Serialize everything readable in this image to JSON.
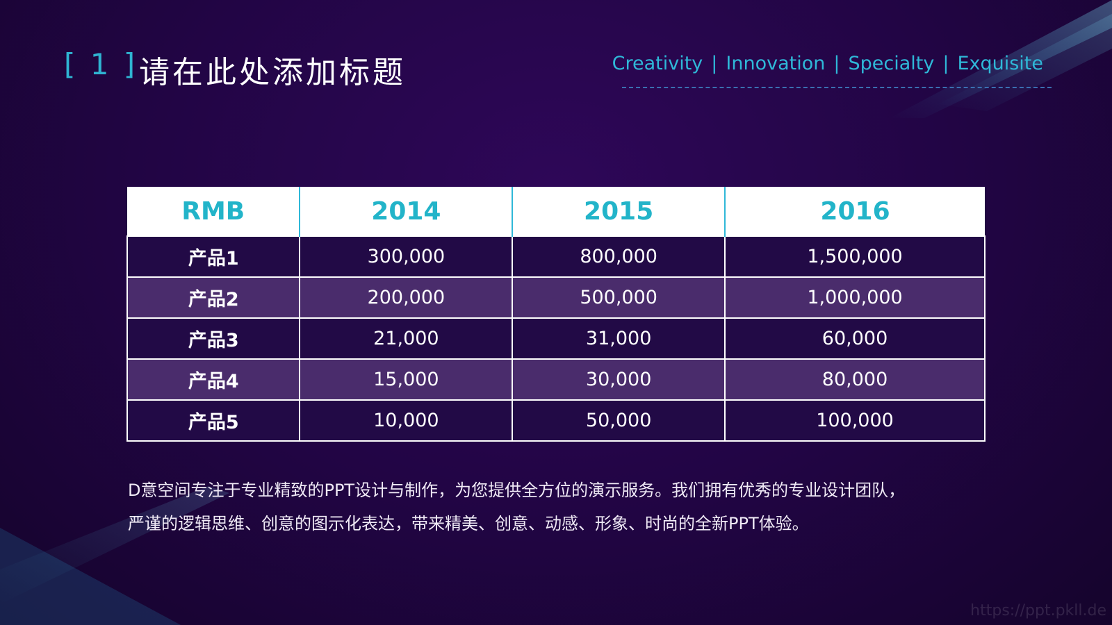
{
  "header": {
    "number": "[ 1 ]",
    "title": "请在此处添加标题",
    "tags": [
      "Creativity",
      "Innovation",
      "Specialty",
      "Exquisite"
    ],
    "separator": "|"
  },
  "table": {
    "columns": [
      "RMB",
      "2014",
      "2015",
      "2016"
    ],
    "rows": [
      [
        "产品1",
        "300,000",
        "800,000",
        "1,500,000"
      ],
      [
        "产品2",
        "200,000",
        "500,000",
        "1,000,000"
      ],
      [
        "产品3",
        "21,000",
        "31,000",
        "60,000"
      ],
      [
        "产品4",
        "15,000",
        "30,000",
        "80,000"
      ],
      [
        "产品5",
        "10,000",
        "50,000",
        "100,000"
      ]
    ]
  },
  "body": [
    "D意空间专注于专业精致的PPT设计与制作，为您提供全方位的演示服务。我们拥有优秀的专业设计团队，",
    "严谨的逻辑思维、创意的图示化表达，带来精美、创意、动感、形象、时尚的全新PPT体验。"
  ],
  "watermark": "https://ppt.pkll.de"
}
